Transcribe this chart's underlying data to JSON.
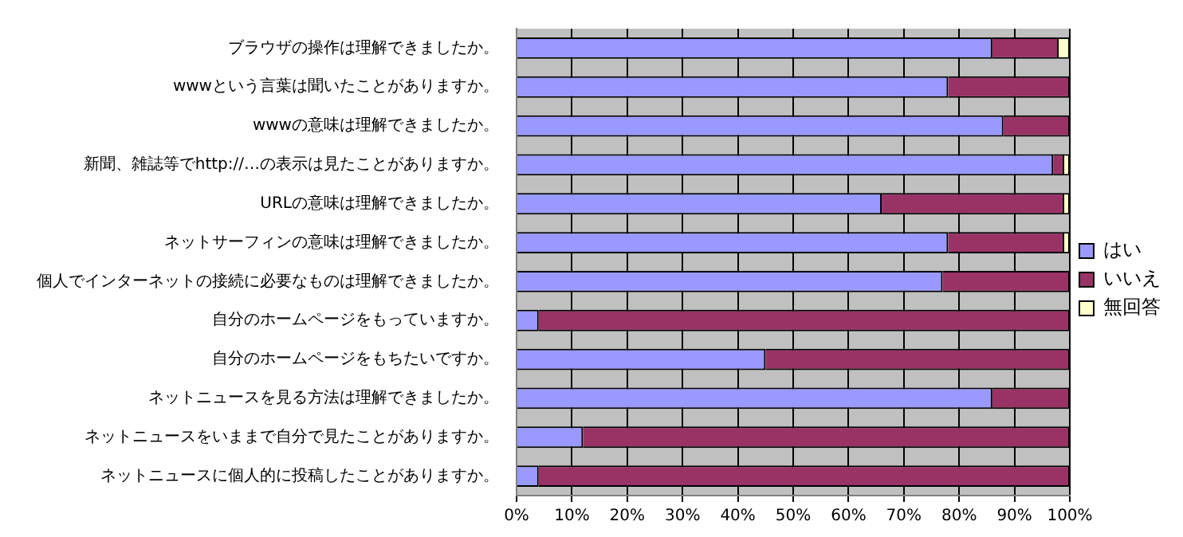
{
  "chart_data": {
    "type": "bar",
    "orientation": "horizontal",
    "stacked": true,
    "legend": "right",
    "grid": "x",
    "categories": [
      "ブラウザの操作は理解できましたか。",
      "wwwという言葉は聞いたことがありますか。",
      "wwwの意味は理解できましたか。",
      "新聞、雑誌等でhttp://…の表示は見たことがありますか。",
      "URLの意味は理解できましたか。",
      "ネットサーフィンの意味は理解できましたか。",
      "個人でインターネットの接続に必要なものは理解できましたか。",
      "自分のホームページをもっていますか。",
      "自分のホームページをもちたいですか。",
      "ネットニュースを見る方法は理解できましたか。",
      "ネットニュースをいままで自分で見たことがありますか。",
      "ネットニュースに個人的に投稿したことがありますか。"
    ],
    "series": [
      {
        "name": "はい",
        "color": "#9999ff",
        "values": [
          86,
          78,
          88,
          97,
          66,
          78,
          77,
          4,
          45,
          86,
          12,
          4
        ]
      },
      {
        "name": "いいえ",
        "color": "#993366",
        "values": [
          12,
          22,
          12,
          2,
          33,
          21,
          23,
          96,
          55,
          14,
          88,
          96
        ]
      },
      {
        "name": "無回答",
        "color": "#ffffcc",
        "values": [
          2,
          0,
          0,
          1,
          1,
          1,
          0,
          0,
          0,
          0,
          0,
          0
        ]
      }
    ],
    "xlim": [
      0,
      100
    ],
    "xticks": [
      {
        "value": 0,
        "label": "0%"
      },
      {
        "value": 10,
        "label": "10%"
      },
      {
        "value": 20,
        "label": "20%"
      },
      {
        "value": 30,
        "label": "30%"
      },
      {
        "value": 40,
        "label": "40%"
      },
      {
        "value": 50,
        "label": "50%"
      },
      {
        "value": 60,
        "label": "60%"
      },
      {
        "value": 70,
        "label": "70%"
      },
      {
        "value": 80,
        "label": "80%"
      },
      {
        "value": 90,
        "label": "90%"
      },
      {
        "value": 100,
        "label": "100%"
      }
    ]
  }
}
